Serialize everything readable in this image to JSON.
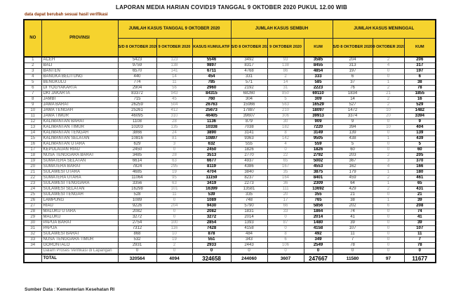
{
  "title": "LAPORAN MEDIA HARIAN COVID19 TANGGAL 9 OKTOBER 2020 PUKUL 12.00 WIB",
  "note": "data dapat berubah sesuai hasil verifikasi",
  "source": "Sumber Data : Kementerian Kesehatan RI",
  "colors": {
    "header_bg": "#f6d32e",
    "note_red": "#8b3000",
    "grid": "#2a2a2a",
    "muted_new_cases": "#8a8a8a",
    "bold_kum": "#000000"
  },
  "table": {
    "headers": {
      "no": "NO",
      "provinsi": "PROVINSI",
      "groups": [
        {
          "label": "JUMLAH KASUS TANGGAL 9 OKTOBER 2020",
          "sub": [
            "S/D 8 OKTOBER 2020",
            "9 OKTOBER 2020",
            "KASUS KUMULATIF"
          ]
        },
        {
          "label": "JUMLAH KASUS SEMBUH",
          "sub": [
            "S/D 8 OKTOBER 2020",
            "9 OKTOBER 2020",
            "KUM"
          ]
        },
        {
          "label": "JUMLAH KASUS MENINGGAL",
          "sub": [
            "S/D 8 OKTOBER 2020",
            "9 OKTOBER 2020",
            "KUM"
          ]
        }
      ]
    },
    "rows": [
      [
        "1",
        "ACEH",
        "5423",
        "123",
        "5546",
        "3492",
        "93",
        "3585",
        "204",
        "2",
        "206"
      ],
      [
        "2",
        "BALI",
        "9759",
        "138",
        "9897",
        "8317",
        "138",
        "8455",
        "313",
        "4",
        "317"
      ],
      [
        "3",
        "BANTEN",
        "6570",
        "141",
        "6711",
        "4768",
        "86",
        "4854",
        "197",
        "0",
        "197"
      ],
      [
        "4",
        "BANGKA BELITUNG",
        "440",
        "14",
        "454",
        "331",
        "2",
        "333",
        "6",
        "0",
        "6"
      ],
      [
        "5",
        "BENGKULU",
        "774",
        "11",
        "785",
        "571",
        "14",
        "585",
        "37",
        "1",
        "38"
      ],
      [
        "6",
        "DI YOGYAKARTA",
        "2904",
        "56",
        "2960",
        "2192",
        "31",
        "2223",
        "76",
        "2",
        "78"
      ],
      [
        "7",
        "DKI JAKARTA",
        "83372",
        "943",
        "84315",
        "68260",
        "850",
        "69110",
        "1834",
        "21",
        "1855"
      ],
      [
        "8",
        "JAMBI",
        "715",
        "45",
        "760",
        "304",
        "5",
        "309",
        "14",
        "2",
        "16"
      ],
      [
        "9",
        "JAWA BARAT",
        "26259",
        "504",
        "26763",
        "15966",
        "563",
        "16529",
        "527",
        "2",
        "529"
      ],
      [
        "10",
        "JAWA TENGAH",
        "25261",
        "412",
        "25673",
        "17887",
        "210",
        "18097",
        "1472",
        "10",
        "1482"
      ],
      [
        "11",
        "JAWA TIMUR",
        "46095",
        "310",
        "46405",
        "39607",
        "306",
        "39913",
        "3374",
        "20",
        "3394"
      ],
      [
        "12",
        "KALIMANTAN BARAT",
        "1108",
        "28",
        "1136",
        "879",
        "30",
        "909",
        "9",
        "0",
        "9"
      ],
      [
        "13",
        "KALIMANTAN TIMUR",
        "10203",
        "135",
        "10338",
        "7038",
        "182",
        "7220",
        "394",
        "10",
        "404"
      ],
      [
        "14",
        "KALIMANTAN TENGAH",
        "3866",
        "24",
        "3890",
        "3141",
        "8",
        "3149",
        "139",
        "0",
        "139"
      ],
      [
        "15",
        "KALIMANTAN SELATAN",
        "10816",
        "81",
        "10897",
        "9363",
        "142",
        "9505",
        "438",
        "1",
        "439"
      ],
      [
        "16",
        "KALIMANTAN UTARA",
        "629",
        "3",
        "632",
        "555",
        "4",
        "559",
        "5",
        "0",
        "5"
      ],
      [
        "17",
        "KEPULAUAN RIAU",
        "2450",
        "0",
        "2450",
        "1826",
        "0",
        "1826",
        "60",
        "0",
        "60"
      ],
      [
        "18",
        "NUSA TENGGARA BARAT",
        "3485",
        "28",
        "3513",
        "2770",
        "22",
        "2792",
        "203",
        "2",
        "205"
      ],
      [
        "19",
        "SUMATERA SELATAN",
        "6614",
        "63",
        "6677",
        "4937",
        "65",
        "5002",
        "367",
        "3",
        "370"
      ],
      [
        "20",
        "SUMATERA BARAT",
        "7824",
        "295",
        "8119",
        "4386",
        "167",
        "4553",
        "162",
        "4",
        "166"
      ],
      [
        "21",
        "SULAWESI UTARA",
        "4685",
        "19",
        "4704",
        "3840",
        "35",
        "3875",
        "179",
        "1",
        "180"
      ],
      [
        "22",
        "SUMATERA UTARA",
        "11064",
        "95",
        "11159",
        "8237",
        "164",
        "8401",
        "459",
        "2",
        "461"
      ],
      [
        "23",
        "SULAWESI TENGGARA",
        "3356",
        "63",
        "3419",
        "2273",
        "36",
        "2309",
        "64",
        "1",
        "65"
      ],
      [
        "24",
        "SULAWESI SELATAN",
        "16298",
        "101",
        "16399",
        "13581",
        "111",
        "13692",
        "429",
        "2",
        "431"
      ],
      [
        "25",
        "SULAWESI TENGAH",
        "528",
        "11",
        "539",
        "335",
        "20",
        "355",
        "21",
        "0",
        "21"
      ],
      [
        "26",
        "LAMPUNG",
        "1089",
        "0",
        "1089",
        "748",
        "17",
        "765",
        "38",
        "1",
        "39"
      ],
      [
        "27",
        "RIAU",
        "9226",
        "204",
        "9430",
        "5790",
        "66",
        "5856",
        "202",
        "6",
        "208"
      ],
      [
        "28",
        "MALUKU UTARA",
        "2082",
        "0",
        "2082",
        "1831",
        "33",
        "1864",
        "74",
        "0",
        "74"
      ],
      [
        "29",
        "MALUKU",
        "3272",
        "0",
        "3272",
        "2014",
        "0",
        "2014",
        "41",
        "0",
        "41"
      ],
      [
        "30",
        "PAPUA BARAT",
        "2754",
        "100",
        "2854",
        "1393",
        "87",
        "1480",
        "39",
        "0",
        "39"
      ],
      [
        "31",
        "PAPUA",
        "7312",
        "116",
        "7428",
        "4158",
        "0",
        "4158",
        "107",
        "0",
        "107"
      ],
      [
        "32",
        "SULAWESI BARAT",
        "868",
        "10",
        "878",
        "484",
        "8",
        "492",
        "11",
        "0",
        "11"
      ],
      [
        "33",
        "NUSA TENGGARA TIMUR",
        "532",
        "19",
        "551",
        "343",
        "6",
        "349",
        "7",
        "0",
        "7"
      ],
      [
        "34",
        "GORONTALO",
        "2931",
        "2",
        "2933",
        "2443",
        "106",
        "2549",
        "78",
        "0",
        "78"
      ]
    ],
    "verification_row": [
      "",
      "Dalam Proses Verifikasi di Lapangan",
      "0",
      "0",
      "0",
      "0",
      "0",
      "0",
      "0",
      "0",
      "0"
    ],
    "total_row": [
      "",
      "TOTAL",
      "320564",
      "4094",
      "324658",
      "244060",
      "3607",
      "247667",
      "11580",
      "97",
      "11677"
    ]
  }
}
